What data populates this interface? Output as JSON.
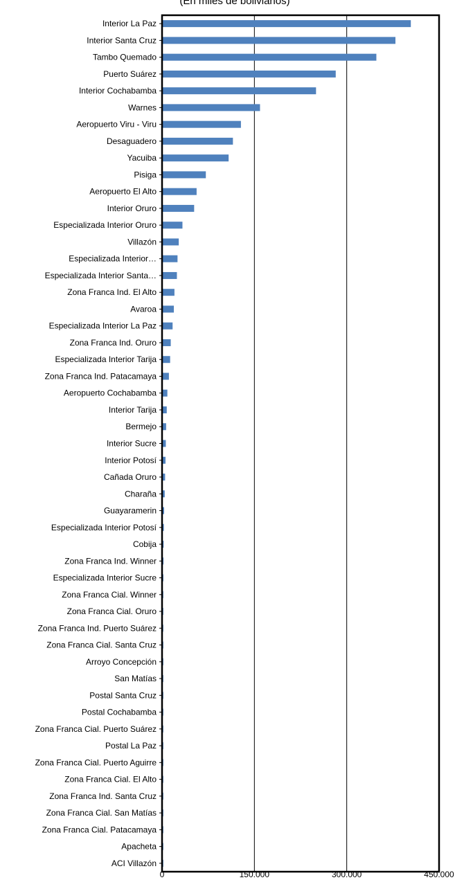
{
  "chart_data": {
    "type": "bar",
    "orientation": "horizontal",
    "subtitle": "(En miles de bolivianos)",
    "xlim": [
      0,
      450000
    ],
    "xticks": [
      0,
      150000,
      300000,
      450000
    ],
    "xtick_labels": [
      "0",
      "150.000",
      "300.000",
      "450.000"
    ],
    "grid": "vertical",
    "bar_color": "#4F81BD",
    "categories": [
      "Interior La Paz",
      "Interior Santa Cruz",
      "Tambo Quemado",
      "Puerto Suárez",
      "Interior Cochabamba",
      "Warnes",
      "Aeropuerto Viru - Viru",
      "Desaguadero",
      "Yacuiba",
      "Pisiga",
      "Aeropuerto El Alto",
      "Interior Oruro",
      "Especializada Interior Oruro",
      "Villazón",
      "Especializada Interior…",
      "Especializada Interior Santa…",
      "Zona Franca Ind. El Alto",
      "Avaroa",
      "Especializada Interior La Paz",
      "Zona Franca Ind. Oruro",
      "Especializada Interior Tarija",
      "Zona Franca Ind. Patacamaya",
      "Aeropuerto Cochabamba",
      "Interior Tarija",
      "Bermejo",
      "Interior Sucre",
      "Interior Potosí",
      "Cañada Oruro",
      "Charaña",
      "Guayaramerin",
      "Especializada Interior Potosí",
      "Cobija",
      "Zona Franca Ind. Winner",
      "Especializada Interior Sucre",
      "Zona Franca Cial. Winner",
      "Zona Franca Cial. Oruro",
      "Zona Franca Ind. Puerto Suárez",
      "Zona Franca Cial. Santa Cruz",
      "Arroyo Concepción",
      "San Matías",
      "Postal Santa Cruz",
      "Postal Cochabamba",
      "Zona Franca Cial. Puerto Suárez",
      "Postal La Paz",
      "Zona Franca Cial. Puerto Aguirre",
      "Zona Franca Cial. El Alto",
      "Zona Franca Ind. Santa Cruz",
      "Zona Franca Cial. San Matías",
      "Zona Franca Cial. Patacamaya",
      "Apacheta",
      "ACI Villazón"
    ],
    "values": [
      403000,
      378000,
      347000,
      281000,
      249000,
      158000,
      127000,
      114000,
      107000,
      70000,
      55000,
      51000,
      32000,
      26000,
      24000,
      23000,
      19000,
      18000,
      16000,
      13000,
      12000,
      10000,
      7500,
      6500,
      5500,
      5000,
      4500,
      3800,
      3200,
      2200,
      1800,
      1400,
      1200,
      1000,
      900,
      800,
      700,
      600,
      500,
      450,
      400,
      350,
      300,
      250,
      200,
      180,
      160,
      140,
      120,
      100,
      80
    ]
  }
}
